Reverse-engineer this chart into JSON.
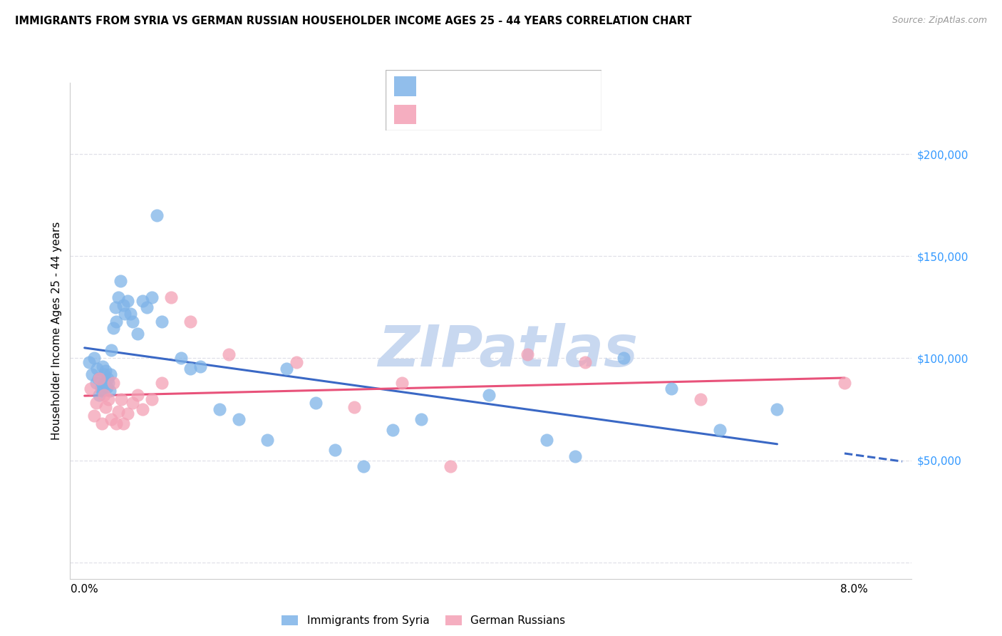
{
  "title": "IMMIGRANTS FROM SYRIA VS GERMAN RUSSIAN HOUSEHOLDER INCOME AGES 25 - 44 YEARS CORRELATION CHART",
  "source": "Source: ZipAtlas.com",
  "ylabel": "Householder Income Ages 25 - 44 years",
  "syria_color": "#7EB3E8",
  "german_color": "#F4A0B5",
  "syria_line_color": "#3A68C5",
  "german_line_color": "#E8527A",
  "legend_blue_color": "#1A5CB5",
  "legend_pink_color": "#E8527A",
  "axis_label_color": "#3399FF",
  "watermark": "ZIPatlas",
  "watermark_color": "#C8D8F0",
  "ytick_color": "#3399FF",
  "xlim": [
    -0.15,
    8.6
  ],
  "ylim": [
    -8000,
    235000
  ],
  "yticks": [
    0,
    50000,
    100000,
    150000,
    200000
  ],
  "ytick_labels": [
    "",
    "$50,000",
    "$100,000",
    "$150,000",
    "$200,000"
  ],
  "xtick_show": [
    0.0,
    8.0
  ],
  "grid_color": "#E0E0E8",
  "syria_x": [
    0.05,
    0.08,
    0.1,
    0.12,
    0.13,
    0.14,
    0.15,
    0.17,
    0.18,
    0.19,
    0.2,
    0.21,
    0.22,
    0.23,
    0.24,
    0.25,
    0.26,
    0.27,
    0.28,
    0.3,
    0.32,
    0.33,
    0.35,
    0.37,
    0.4,
    0.42,
    0.45,
    0.48,
    0.5,
    0.55,
    0.6,
    0.65,
    0.7,
    0.75,
    0.8,
    1.0,
    1.1,
    1.2,
    1.4,
    1.6,
    1.9,
    2.1,
    2.4,
    2.6,
    2.9,
    3.2,
    3.5,
    4.2,
    4.8,
    5.1,
    5.6,
    6.1,
    6.6,
    7.2
  ],
  "syria_y": [
    98000,
    92000,
    100000,
    88000,
    95000,
    90000,
    82000,
    86000,
    84000,
    96000,
    92000,
    88000,
    94000,
    86000,
    90000,
    88000,
    84000,
    92000,
    104000,
    115000,
    125000,
    118000,
    130000,
    138000,
    126000,
    122000,
    128000,
    122000,
    118000,
    112000,
    128000,
    125000,
    130000,
    170000,
    118000,
    100000,
    95000,
    96000,
    75000,
    70000,
    60000,
    95000,
    78000,
    55000,
    47000,
    65000,
    70000,
    82000,
    60000,
    52000,
    100000,
    85000,
    65000,
    75000
  ],
  "german_x": [
    0.06,
    0.1,
    0.12,
    0.15,
    0.18,
    0.2,
    0.22,
    0.25,
    0.28,
    0.3,
    0.33,
    0.35,
    0.38,
    0.4,
    0.45,
    0.5,
    0.55,
    0.6,
    0.7,
    0.8,
    0.9,
    1.1,
    1.5,
    2.2,
    2.8,
    3.3,
    3.8,
    4.6,
    5.2,
    6.4,
    7.9
  ],
  "german_y": [
    85000,
    72000,
    78000,
    90000,
    68000,
    82000,
    76000,
    80000,
    70000,
    88000,
    68000,
    74000,
    80000,
    68000,
    73000,
    78000,
    82000,
    75000,
    80000,
    88000,
    130000,
    118000,
    102000,
    98000,
    76000,
    88000,
    47000,
    102000,
    98000,
    80000,
    88000
  ]
}
